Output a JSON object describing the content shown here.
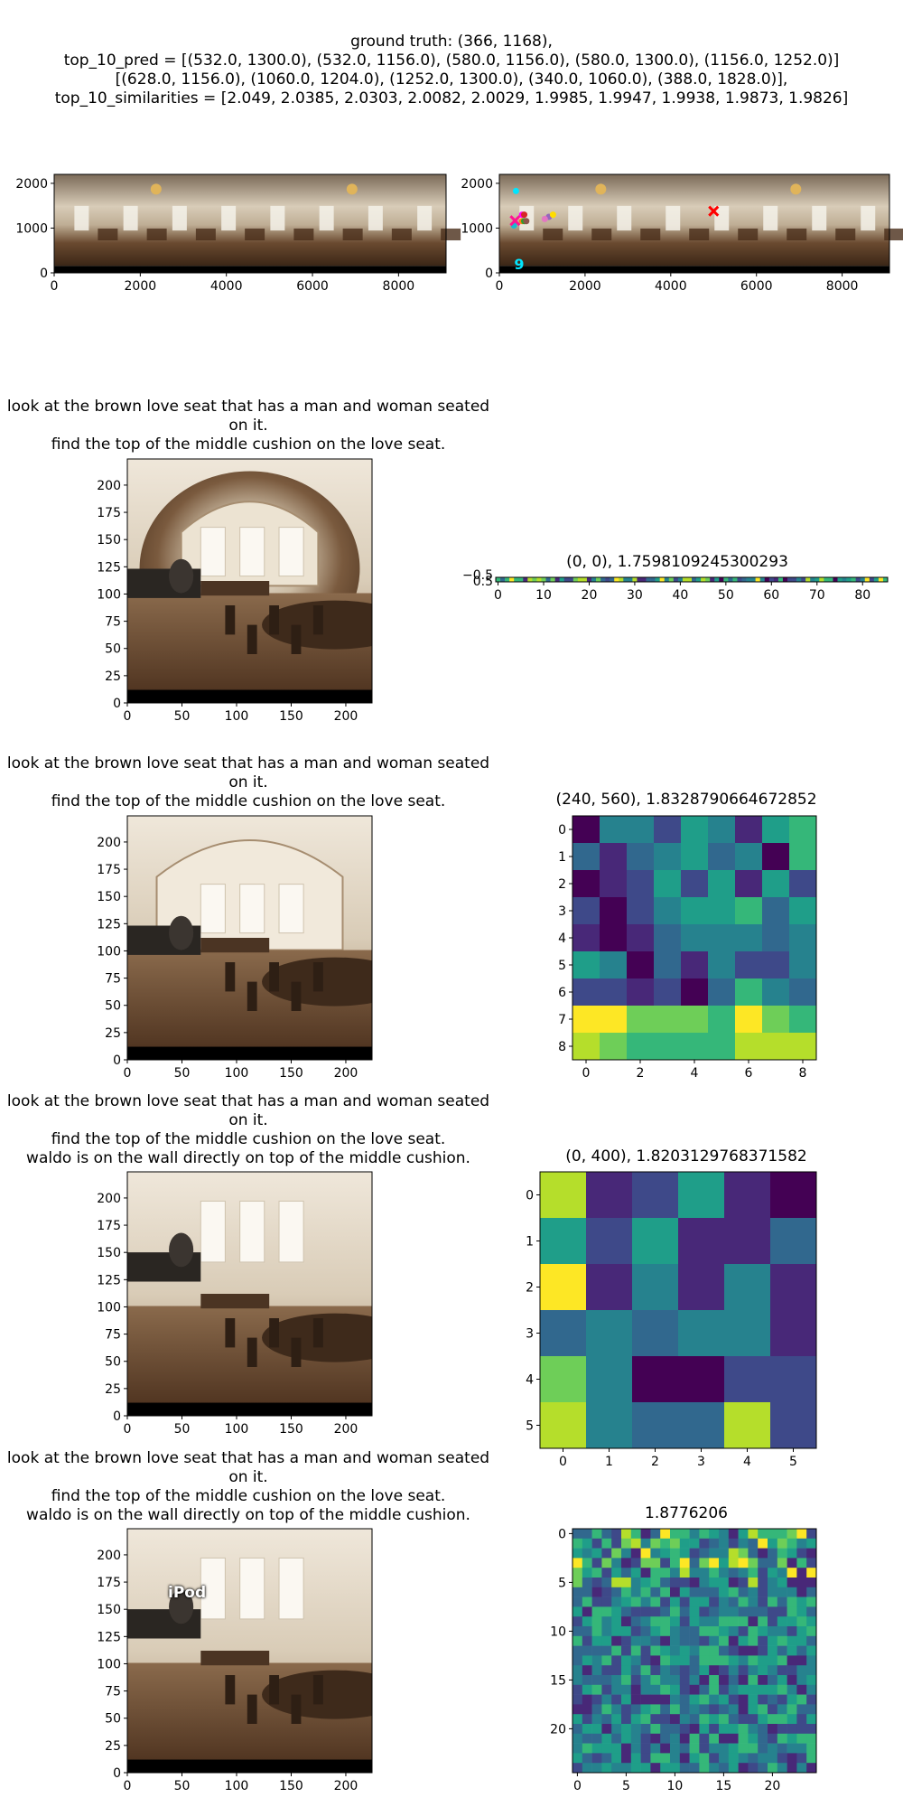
{
  "header": {
    "lines": [
      "ground truth: (366, 1168),",
      "top_10_pred = [(532.0, 1300.0), (532.0, 1156.0), (580.0, 1156.0), (580.0, 1300.0), (1156.0, 1252.0)]",
      "[(628.0, 1156.0), (1060.0, 1204.0), (1252.0, 1300.0), (340.0, 1060.0), (388.0, 1828.0)],",
      "top_10_similarities = [2.049, 2.0385, 2.0303, 2.0082, 2.0029, 1.9985, 1.9947, 1.9938, 1.9873, 1.9826]"
    ]
  },
  "instructions": {
    "row1": [
      "look at the brown love seat that has a man and woman seated",
      "on it.",
      "find the top of the middle cushion on the love seat."
    ],
    "row2": [
      "look at the brown love seat that has a man and woman seated",
      "on it.",
      "find the top of the middle cushion on the love seat."
    ],
    "row3": [
      "look at the brown love seat that has a man and woman seated",
      "on it.",
      "find the top of the middle cushion on the love seat.",
      "waldo is on the wall directly on top of the middle cushion."
    ],
    "row4": [
      "look at the brown love seat that has a man and woman seated",
      "on it.",
      "find the top of the middle cushion on the love seat.",
      "waldo is on the wall directly on top of the middle cushion."
    ]
  },
  "overlay_label": "iPod",
  "chart_data": [
    {
      "type": "image",
      "x_ticks": [
        0,
        2000,
        4000,
        6000,
        8000
      ],
      "y_ticks": [
        0,
        1000,
        2000
      ],
      "xlim": [
        0,
        9104
      ],
      "ylim": [
        2200,
        0
      ]
    },
    {
      "type": "scatter",
      "x_ticks": [
        0,
        2000,
        4000,
        6000,
        8000
      ],
      "y_ticks": [
        0,
        1000,
        2000
      ],
      "xlim": [
        0,
        9104
      ],
      "ylim": [
        2200,
        0
      ],
      "ground_truth": [
        366,
        1168
      ],
      "predictions": [
        [
          532,
          1300
        ],
        [
          532,
          1156
        ],
        [
          580,
          1156
        ],
        [
          580,
          1300
        ],
        [
          1156,
          1252
        ],
        [
          628,
          1156
        ],
        [
          1060,
          1204
        ],
        [
          1252,
          1300
        ],
        [
          340,
          1060
        ],
        [
          388,
          1828
        ]
      ],
      "visible_labels": [
        {
          "text": "9",
          "color": "#00e5ff"
        }
      ],
      "extra_cross": [
        5000,
        1380
      ]
    },
    {
      "type": "image",
      "x_ticks": [
        0,
        50,
        100,
        150,
        200
      ],
      "y_ticks": [
        0,
        25,
        50,
        75,
        100,
        125,
        150,
        175,
        200
      ],
      "xlim": [
        0,
        224
      ],
      "ylim": [
        224,
        0
      ]
    },
    {
      "type": "heatmap",
      "title": "(0, 0), 1.7598109245300293",
      "x_ticks": [
        0,
        10,
        20,
        30,
        40,
        50,
        60,
        70,
        80
      ],
      "y_ticks": [
        "−0.5",
        "0.5"
      ],
      "rows": 1,
      "cols": 86
    },
    {
      "type": "image",
      "x_ticks": [
        0,
        50,
        100,
        150,
        200
      ],
      "y_ticks": [
        0,
        25,
        50,
        75,
        100,
        125,
        150,
        175,
        200
      ],
      "xlim": [
        0,
        224
      ],
      "ylim": [
        224,
        0
      ]
    },
    {
      "type": "heatmap",
      "title": "(240, 560), 1.8328790664672852",
      "x_ticks": [
        0,
        2,
        4,
        6,
        8
      ],
      "y_ticks": [
        0,
        1,
        2,
        3,
        4,
        5,
        6,
        7,
        8
      ],
      "rows": 9,
      "cols": 9
    },
    {
      "type": "image",
      "x_ticks": [
        0,
        50,
        100,
        150,
        200
      ],
      "y_ticks": [
        0,
        25,
        50,
        75,
        100,
        125,
        150,
        175,
        200
      ],
      "xlim": [
        0,
        224
      ],
      "ylim": [
        224,
        0
      ]
    },
    {
      "type": "heatmap",
      "title": "(0, 400), 1.8203129768371582",
      "x_ticks": [
        0,
        1,
        2,
        3,
        4,
        5
      ],
      "y_ticks": [
        0,
        1,
        2,
        3,
        4,
        5
      ],
      "rows": 6,
      "cols": 6
    },
    {
      "type": "image",
      "x_ticks": [
        0,
        50,
        100,
        150,
        200
      ],
      "y_ticks": [
        0,
        25,
        50,
        75,
        100,
        125,
        150,
        175,
        200
      ],
      "xlim": [
        0,
        224
      ],
      "ylim": [
        224,
        0
      ]
    },
    {
      "type": "heatmap",
      "title": "1.8776206",
      "x_ticks": [
        0,
        5,
        10,
        15,
        20
      ],
      "y_ticks": [
        0,
        5,
        10,
        15,
        20
      ],
      "rows": 25,
      "cols": 25
    }
  ],
  "colors": {
    "viridis": [
      "#440154",
      "#482878",
      "#3e4989",
      "#31688e",
      "#26828e",
      "#1f9e89",
      "#35b779",
      "#6ece58",
      "#b5de2b",
      "#fde725"
    ]
  }
}
